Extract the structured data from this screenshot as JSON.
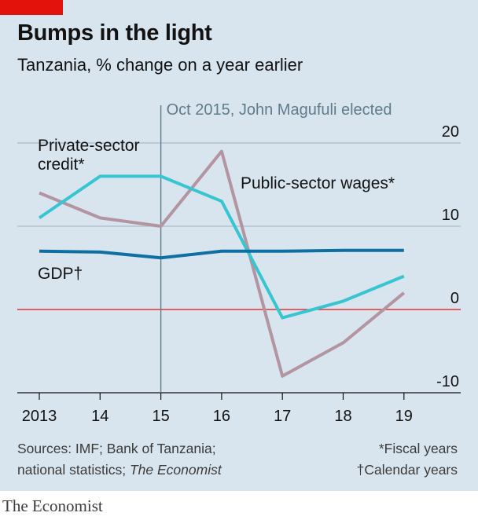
{
  "header": {
    "title": "Bumps in the light",
    "subtitle": "Tanzania, % change on a year earlier"
  },
  "chart_data": {
    "type": "line",
    "title": "Bumps in the light",
    "subtitle": "Tanzania, % change on a year earlier",
    "x": [
      2013,
      2014,
      2015,
      2016,
      2017,
      2018,
      2019
    ],
    "x_tick_labels": [
      "2013",
      "14",
      "15",
      "16",
      "17",
      "18",
      "19"
    ],
    "ylim": [
      -10,
      20
    ],
    "y_ticks": [
      20,
      10,
      0,
      -10
    ],
    "y_tick_labels": [
      "20",
      "10",
      "0",
      "-10"
    ],
    "y_axis_side": "right",
    "grid": true,
    "zero_line_color": "#e3120b",
    "series": [
      {
        "name": "Private-sector credit*",
        "label_lines": [
          "Private-sector",
          "credit*"
        ],
        "color": "#37c5d2",
        "values": [
          11,
          16,
          16,
          13,
          -1,
          1,
          4
        ]
      },
      {
        "name": "Public-sector wages*",
        "label_lines": [
          "Public-sector wages*"
        ],
        "color": "#b295a1",
        "values": [
          14,
          11,
          10,
          19,
          -8,
          -4,
          2
        ]
      },
      {
        "name": "GDP†",
        "label_lines": [
          "GDP†"
        ],
        "color": "#0e6fa1",
        "values": [
          7,
          6.9,
          6.2,
          7,
          7,
          7.1,
          7.1
        ]
      }
    ],
    "annotations": [
      {
        "x": 2015,
        "label": "Oct 2015, John Magufuli elected"
      }
    ]
  },
  "footer": {
    "sources_line1": "Sources: IMF; Bank of Tanzania;",
    "sources_line2": "national statistics; ",
    "sources_line2_italic": "The Economist",
    "note_fiscal": "*Fiscal years",
    "note_calendar": "†Calendar years",
    "brand": "The Economist"
  }
}
